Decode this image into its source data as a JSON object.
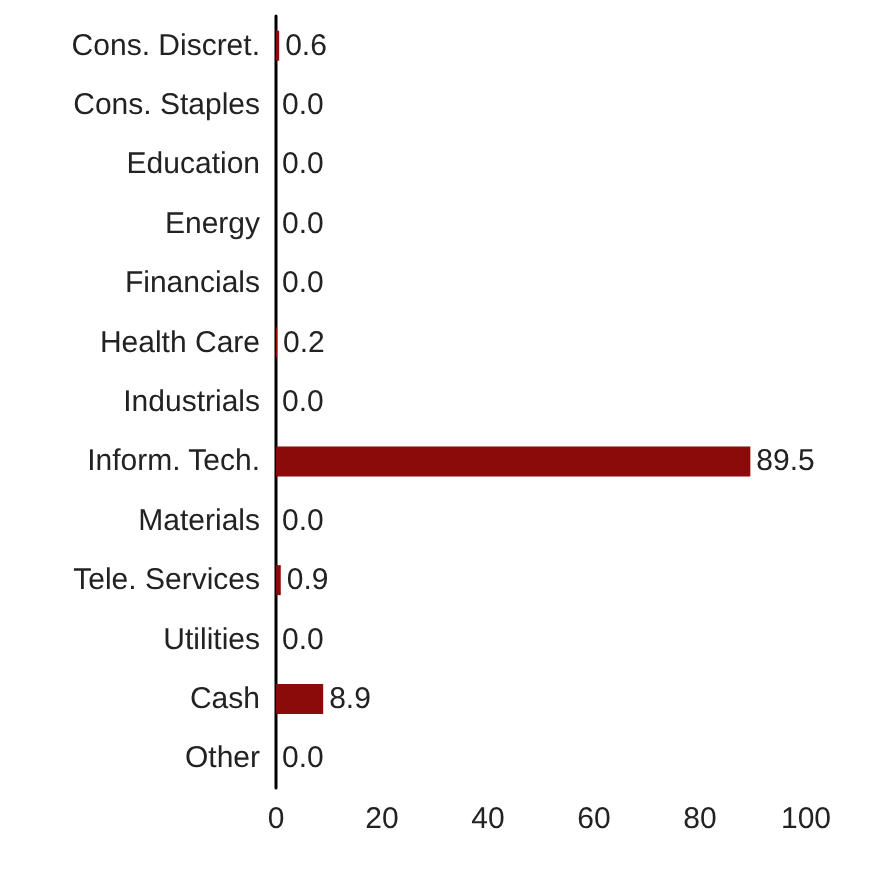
{
  "chart_data": {
    "type": "bar",
    "orientation": "horizontal",
    "categories": [
      "Cons. Discret.",
      "Cons. Staples",
      "Education",
      "Energy",
      "Financials",
      "Health Care",
      "Industrials",
      "Inform. Tech.",
      "Materials",
      "Tele. Services",
      "Utilities",
      "Cash",
      "Other"
    ],
    "series": [
      {
        "color": "#8b0a0a",
        "values": [
          0.6,
          0.0,
          0.0,
          0.0,
          0.0,
          0.2,
          0.0,
          89.5,
          0.0,
          0.9,
          0.0,
          8.9,
          0.0
        ],
        "value_labels": [
          "0.6",
          "0.0",
          "0.0",
          "0.0",
          "0.0",
          "0.2",
          "0.0",
          "89.5",
          "0.0",
          "0.9",
          "0.0",
          "8.9",
          "0.0"
        ]
      }
    ],
    "xlim": [
      0,
      100
    ],
    "xticks": [
      0,
      20,
      40,
      60,
      80,
      100
    ],
    "grid": false
  }
}
